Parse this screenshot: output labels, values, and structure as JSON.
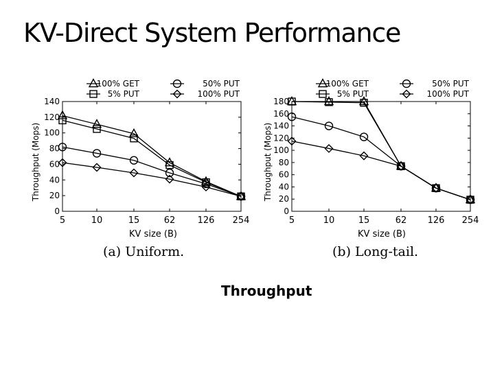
{
  "slide": {
    "title": "KV-Direct System Performance",
    "subtitle": "Throughput"
  },
  "chart_data": [
    {
      "type": "line",
      "title": "(a) Uniform.",
      "xlabel": "KV size (B)",
      "ylabel": "Throughput (Mops)",
      "categories": [
        "5",
        "10",
        "15",
        "62",
        "126",
        "254"
      ],
      "ylim": [
        0,
        140
      ],
      "yticks": [
        0,
        20,
        40,
        60,
        80,
        100,
        120,
        140
      ],
      "grid": false,
      "legend_position": "top",
      "series": [
        {
          "name": "100% GET",
          "marker": "triangle",
          "values": [
            122,
            111,
            99,
            62,
            38,
            19
          ]
        },
        {
          "name": "50% PUT",
          "marker": "circle",
          "values": [
            82,
            74,
            65,
            49,
            35,
            19
          ]
        },
        {
          "name": "5% PUT",
          "marker": "square",
          "values": [
            116,
            105,
            93,
            59,
            37,
            19
          ]
        },
        {
          "name": "100% PUT",
          "marker": "diamond",
          "values": [
            62,
            56,
            49,
            41,
            31,
            19
          ]
        }
      ]
    },
    {
      "type": "line",
      "title": "(b) Long-tail.",
      "xlabel": "KV size (B)",
      "ylabel": "Throughput (Mops)",
      "categories": [
        "5",
        "10",
        "15",
        "62",
        "126",
        "254"
      ],
      "ylim": [
        0,
        180
      ],
      "yticks": [
        0,
        20,
        40,
        60,
        80,
        100,
        120,
        140,
        160,
        180
      ],
      "grid": false,
      "legend_position": "top",
      "series": [
        {
          "name": "100% GET",
          "marker": "triangle",
          "values": [
            180,
            180,
            180,
            74,
            38,
            19
          ]
        },
        {
          "name": "50% PUT",
          "marker": "circle",
          "values": [
            155,
            140,
            122,
            74,
            38,
            19
          ]
        },
        {
          "name": "5% PUT",
          "marker": "square",
          "values": [
            180,
            179,
            178,
            74,
            38,
            19
          ]
        },
        {
          "name": "100% PUT",
          "marker": "diamond",
          "values": [
            115,
            103,
            91,
            74,
            38,
            19
          ]
        }
      ]
    }
  ]
}
